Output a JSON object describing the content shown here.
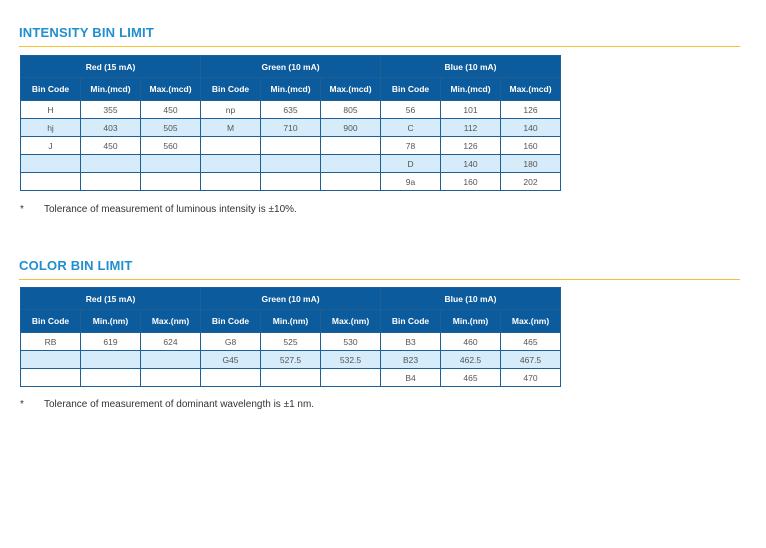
{
  "intensity": {
    "title": "INTENSITY BIN LIMIT",
    "groups": [
      "Red (15 mA)",
      "Green (10 mA)",
      "Blue (10 mA)"
    ],
    "columns": [
      "Bin Code",
      "Min.(mcd)",
      "Max.(mcd)",
      "Bin Code",
      "Min.(mcd)",
      "Max.(mcd)",
      "Bin Code",
      "Min.(mcd)",
      "Max.(mcd)"
    ],
    "rows": [
      [
        "H",
        "355",
        "450",
        "np",
        "635",
        "805",
        "56",
        "101",
        "126"
      ],
      [
        "hj",
        "403",
        "505",
        "M",
        "710",
        "900",
        "C",
        "112",
        "140"
      ],
      [
        "J",
        "450",
        "560",
        "",
        "",
        "",
        "78",
        "126",
        "160"
      ],
      [
        "",
        "",
        "",
        "",
        "",
        "",
        "D",
        "140",
        "180"
      ],
      [
        "",
        "",
        "",
        "",
        "",
        "",
        "9a",
        "160",
        "202"
      ]
    ],
    "note_star": "*",
    "note": "Tolerance of measurement of luminous intensity is ±10%."
  },
  "color": {
    "title": "COLOR BIN LIMIT",
    "groups": [
      "Red (15 mA)",
      "Green (10 mA)",
      "Blue (10 mA)"
    ],
    "columns": [
      "Bin Code",
      "Min.(nm)",
      "Max.(nm)",
      "Bin Code",
      "Min.(nm)",
      "Max.(nm)",
      "Bin Code",
      "Min.(nm)",
      "Max.(nm)"
    ],
    "rows": [
      [
        "RB",
        "619",
        "624",
        "G8",
        "525",
        "530",
        "B3",
        "460",
        "465"
      ],
      [
        "",
        "",
        "",
        "G45",
        "527.5",
        "532.5",
        "B23",
        "462.5",
        "467.5"
      ],
      [
        "",
        "",
        "",
        "",
        "",
        "",
        "B4",
        "465",
        "470"
      ]
    ],
    "note_star": "*",
    "note": "Tolerance of measurement of dominant wavelength is ±1 nm."
  }
}
